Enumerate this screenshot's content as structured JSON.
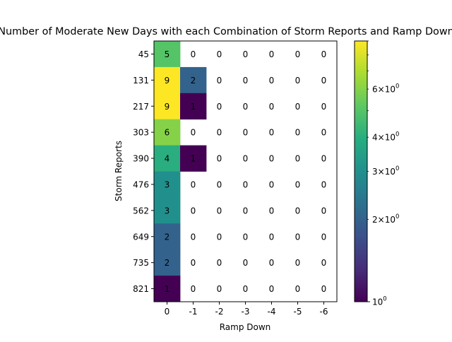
{
  "chart_data": {
    "type": "heatmap",
    "title": "Number of Moderate New Days with each Combination of Storm Reports and Ramp Down",
    "xlabel": "Ramp Down",
    "ylabel": "Storm Reports",
    "x_categories": [
      "0",
      "-1",
      "-2",
      "-3",
      "-4",
      "-5",
      "-6"
    ],
    "y_categories": [
      "45",
      "131",
      "217",
      "303",
      "390",
      "476",
      "562",
      "649",
      "735",
      "821"
    ],
    "values": [
      [
        5,
        0,
        0,
        0,
        0,
        0,
        0
      ],
      [
        9,
        2,
        0,
        0,
        0,
        0,
        0
      ],
      [
        9,
        1,
        0,
        0,
        0,
        0,
        0
      ],
      [
        6,
        0,
        0,
        0,
        0,
        0,
        0
      ],
      [
        4,
        1,
        0,
        0,
        0,
        0,
        0
      ],
      [
        3,
        0,
        0,
        0,
        0,
        0,
        0
      ],
      [
        3,
        0,
        0,
        0,
        0,
        0,
        0
      ],
      [
        2,
        0,
        0,
        0,
        0,
        0,
        0
      ],
      [
        2,
        0,
        0,
        0,
        0,
        0,
        0
      ],
      [
        1,
        0,
        0,
        0,
        0,
        0,
        0
      ]
    ],
    "colormap": "viridis",
    "color_scale": "log",
    "color_range": [
      1,
      9
    ],
    "zero_cells": "blank",
    "colorbar": {
      "position": "right",
      "major_ticks": [
        {
          "value": 1,
          "base": "10",
          "exp": "0"
        }
      ],
      "minor_tick_labels": [
        {
          "value": 2,
          "mant": "2",
          "base": "10",
          "exp": "0"
        },
        {
          "value": 3,
          "mant": "3",
          "base": "10",
          "exp": "0"
        },
        {
          "value": 4,
          "mant": "4",
          "base": "10",
          "exp": "0"
        },
        {
          "value": 6,
          "mant": "6",
          "base": "10",
          "exp": "0"
        }
      ],
      "minor_ticks_unlabeled": [
        5,
        7,
        8,
        9
      ]
    }
  }
}
